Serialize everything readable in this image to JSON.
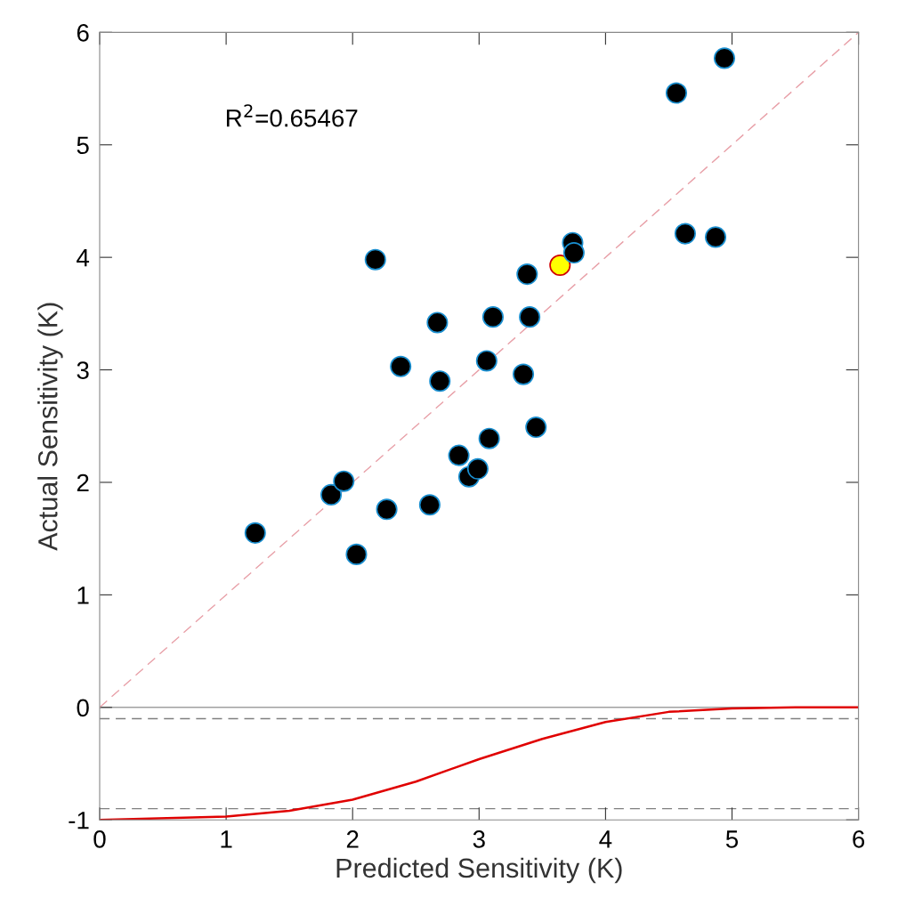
{
  "chart_data": {
    "type": "scatter",
    "xlabel": "Predicted Sensitivity (K)",
    "ylabel": "Actual Sensitivity (K)",
    "xlim": [
      0,
      6
    ],
    "ylim": [
      -1,
      6
    ],
    "xticks": [
      0,
      1,
      2,
      3,
      4,
      5,
      6
    ],
    "yticks": [
      -1,
      0,
      1,
      2,
      3,
      4,
      5,
      6
    ],
    "grid": false,
    "legend": false,
    "annotations": [
      "R$^{2}$=0.65467"
    ],
    "ref_lines": [
      {
        "axis": "y",
        "value": 0,
        "color": "#a0a0a0",
        "line_style": "solid"
      },
      {
        "axis": "y",
        "value": -0.1,
        "color": "#808080",
        "line_style": "dashed"
      },
      {
        "axis": "y",
        "value": -0.9,
        "color": "#808080",
        "line_style": "dashed"
      }
    ],
    "series": [
      {
        "type": "line",
        "color": "#e8a0a8",
        "line_style": "dashed",
        "marker": "none",
        "x": [
          0,
          6
        ],
        "values": [
          0,
          6
        ]
      },
      {
        "type": "line",
        "color": "#e00000",
        "line_style": "solid",
        "marker": "none",
        "x": [
          0,
          1,
          1.5,
          2,
          2.5,
          3,
          3.5,
          4,
          4.5,
          5,
          5.5,
          6
        ],
        "values": [
          -1,
          -0.97,
          -0.92,
          -0.82,
          -0.66,
          -0.46,
          -0.28,
          -0.13,
          -0.04,
          -0.01,
          0,
          0
        ]
      },
      {
        "marker": "circle",
        "x": [
          1.23,
          1.83,
          1.93,
          2.03,
          2.18,
          2.27,
          2.38,
          2.61,
          2.67,
          2.69,
          2.84,
          2.92,
          2.99,
          3.06,
          3.08,
          3.11,
          3.35,
          3.38,
          3.4,
          3.45,
          3.64,
          3.74,
          3.75,
          4.56,
          4.63,
          4.87,
          4.94
        ],
        "values": [
          1.55,
          1.89,
          2.01,
          1.36,
          3.98,
          1.76,
          3.03,
          1.8,
          3.42,
          2.9,
          2.24,
          2.05,
          2.12,
          3.08,
          2.39,
          3.47,
          2.96,
          3.85,
          3.47,
          2.49,
          3.93,
          4.13,
          4.04,
          5.46,
          4.21,
          4.18,
          5.77
        ],
        "colors": [
          "#000000",
          "#000000",
          "#000000",
          "#000000",
          "#000000",
          "#000000",
          "#000000",
          "#000000",
          "#000000",
          "#000000",
          "#000000",
          "#000000",
          "#000000",
          "#000000",
          "#000000",
          "#000000",
          "#000000",
          "#000000",
          "#000000",
          "#000000",
          "#ffff00",
          "#000000",
          "#000000",
          "#000000",
          "#000000",
          "#000000",
          "#000000"
        ]
      }
    ]
  }
}
